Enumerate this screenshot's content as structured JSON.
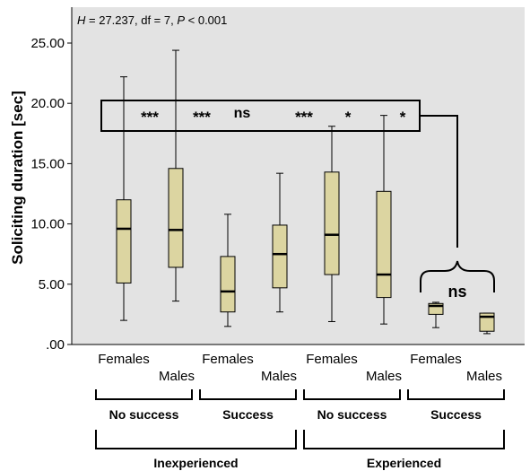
{
  "chart_data": {
    "type": "boxplot",
    "ylabel": "Soliciting duration [sec]",
    "ylim": [
      0,
      25
    ],
    "yticks": [
      0,
      5,
      10,
      15,
      20,
      25
    ],
    "ytick_labels": [
      ".00",
      "5.00",
      "10.00",
      "15.00",
      "20.00",
      "25.00"
    ],
    "statistic": {
      "H_label": "H",
      "H_value": "27.237",
      "df": "7",
      "P_label": "P",
      "P_value": "0.001"
    },
    "box_color": "#dcd5a1",
    "categories": [
      "Females",
      "Males",
      "Females",
      "Males",
      "Females",
      "Males",
      "Females",
      "Males"
    ],
    "boxes": [
      {
        "label": "Females",
        "min": 2.0,
        "q1": 5.1,
        "median": 9.6,
        "q3": 12.0,
        "max": 22.2
      },
      {
        "label": "Males",
        "min": 3.6,
        "q1": 6.4,
        "median": 9.5,
        "q3": 14.6,
        "max": 24.4
      },
      {
        "label": "Females",
        "min": 1.5,
        "q1": 2.7,
        "median": 4.4,
        "q3": 7.3,
        "max": 10.8
      },
      {
        "label": "Males",
        "min": 2.7,
        "q1": 4.7,
        "median": 7.5,
        "q3": 9.9,
        "max": 14.2
      },
      {
        "label": "Females",
        "min": 1.9,
        "q1": 5.8,
        "median": 9.1,
        "q3": 14.3,
        "max": 18.1
      },
      {
        "label": "Males",
        "min": 1.7,
        "q1": 3.9,
        "median": 5.8,
        "q3": 12.7,
        "max": 19.0
      },
      {
        "label": "Females",
        "min": 1.4,
        "q1": 2.5,
        "median": 3.2,
        "q3": 3.4,
        "max": 3.5
      },
      {
        "label": "Males",
        "min": 0.9,
        "q1": 1.1,
        "median": 2.3,
        "q3": 2.6,
        "max": 2.6
      }
    ],
    "significance_top": [
      "***",
      "***",
      "ns",
      "***",
      "*",
      "*"
    ],
    "significance_pair": "ns",
    "groups_level1": [
      "No success",
      "Success",
      "No success",
      "Success"
    ],
    "groups_level2": [
      "Inexperienced",
      "Experienced"
    ]
  }
}
